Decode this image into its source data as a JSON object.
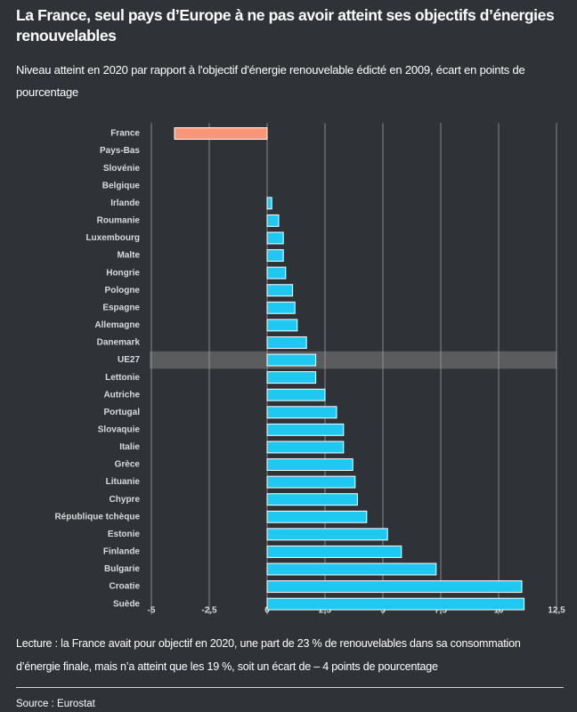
{
  "chart_data": {
    "type": "barh",
    "title": "La France, seul pays d’Europe à ne pas avoir atteint ses objectifs d’énergies renouvelables",
    "subtitle": "Niveau atteint en 2020 par rapport à l'objectif d'énergie renouvelable édicté en 2009, écart en points de pourcentage",
    "categories": [
      "France",
      "Pays-Bas",
      "Slovénie",
      "Belgique",
      "Irlande",
      "Roumanie",
      "Luxembourg",
      "Malte",
      "Hongrie",
      "Pologne",
      "Espagne",
      "Allemagne",
      "Danemark",
      "UE27",
      "Lettonie",
      "Autriche",
      "Portugal",
      "Slovaquie",
      "Italie",
      "Grèce",
      "Lituanie",
      "Chypre",
      "République tchèque",
      "Estonie",
      "Finlande",
      "Bulgarie",
      "Croatie",
      "Suède"
    ],
    "values": [
      -4,
      0,
      0,
      0,
      0.2,
      0.5,
      0.7,
      0.7,
      0.8,
      1.1,
      1.2,
      1.3,
      1.7,
      2.1,
      2.1,
      2.5,
      3.0,
      3.3,
      3.3,
      3.7,
      3.8,
      3.9,
      4.3,
      5.2,
      5.8,
      7.3,
      11.0,
      11.1
    ],
    "color": "#1ec8f0",
    "negative_color": "#f9967a",
    "highlight_index": 13,
    "xlim": [
      -5,
      12.5
    ],
    "xticks": [
      -5,
      {
        "value": -2.5,
        "label": "-2,5"
      },
      0,
      {
        "value": 2.5,
        "label": "2,5"
      },
      5,
      {
        "value": 7.5,
        "label": "7,5"
      },
      10,
      {
        "value": 12.5,
        "label": "12,5"
      }
    ],
    "grid": true,
    "note": "Lecture : la France avait pour objectif en 2020, une part de 23 % de renouvelables dans sa consommation d’énergie finale, mais n’a atteint que les 19 %, soit un écart de – 4 points de pourcentage",
    "source": "Source : Eurostat"
  }
}
